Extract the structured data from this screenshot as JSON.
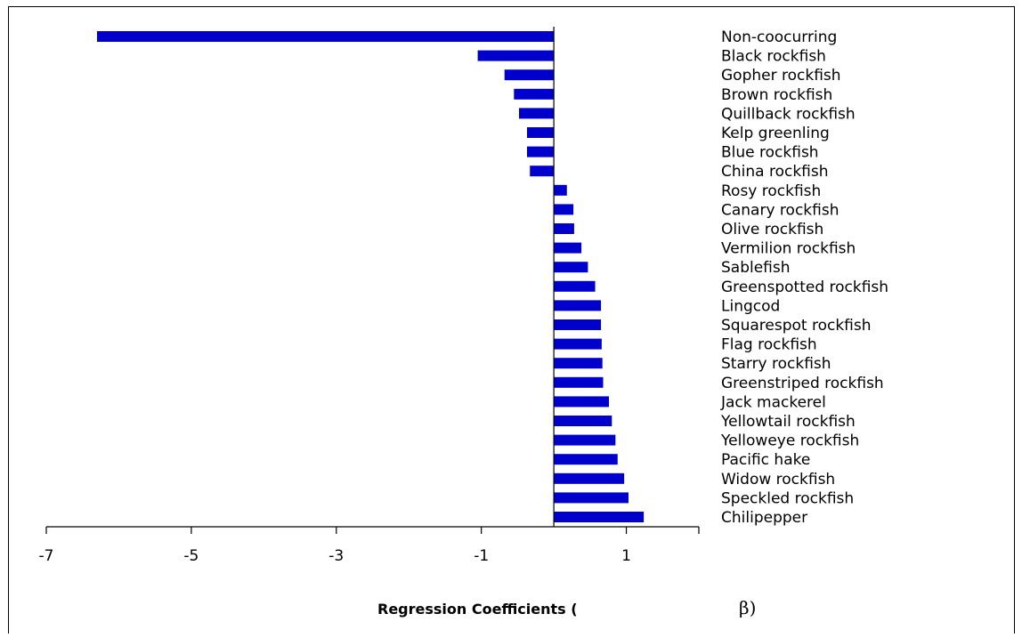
{
  "chart_data": {
    "type": "bar",
    "orientation": "horizontal",
    "categories": [
      "Non-coocurring",
      "Black rockfish",
      "Gopher rockfish",
      "Brown rockfish",
      "Quillback rockfish",
      "Kelp greenling",
      "Blue rockfish",
      "China rockfish",
      "Rosy rockfish",
      "Canary rockfish",
      "Olive rockfish",
      "Vermilion rockfish",
      "Sablefish",
      "Greenspotted rockfish",
      "Lingcod",
      "Squarespot rockfish",
      "Flag rockfish",
      "Starry rockfish",
      "Greenstriped rockfish",
      "Jack mackerel",
      "Yellowtail rockfish",
      "Yelloweye rockfish",
      "Pacific hake",
      "Widow rockfish",
      "Speckled rockfish",
      "Chilipepper"
    ],
    "values": [
      -6.3,
      -1.05,
      -0.68,
      -0.55,
      -0.48,
      -0.37,
      -0.37,
      -0.33,
      0.18,
      0.27,
      0.28,
      0.38,
      0.47,
      0.57,
      0.65,
      0.65,
      0.66,
      0.67,
      0.68,
      0.76,
      0.8,
      0.85,
      0.88,
      0.97,
      1.03,
      1.24
    ],
    "xlim": [
      -7,
      2
    ],
    "xticks": [
      -7,
      -5,
      -3,
      -1,
      1
    ],
    "xtick_labels": [
      "-7",
      "-5",
      "-3",
      "-1",
      "1"
    ],
    "xlabel": "Regression Coefficients (",
    "xlabel_symbol": "β)",
    "title": "",
    "bar_color": "#0000cc",
    "grid": false,
    "legend": "none"
  }
}
